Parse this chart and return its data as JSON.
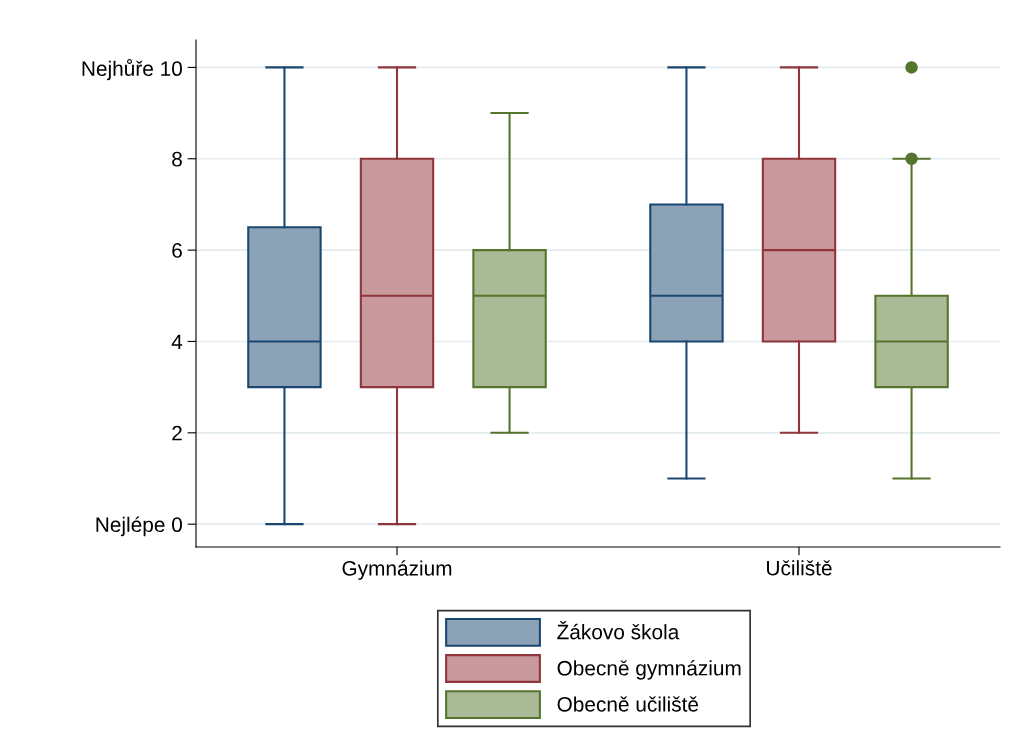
{
  "chart_data": {
    "type": "box",
    "categories": [
      "Gymnázium",
      "Učiliště"
    ],
    "series": [
      {
        "name": "Žákovo škola",
        "color": "#1a476f",
        "boxes": [
          {
            "low": 0,
            "q1": 3,
            "median": 4,
            "q3": 6.5,
            "high": 10
          },
          {
            "low": 1,
            "q1": 4,
            "median": 5,
            "q3": 7,
            "high": 10
          }
        ]
      },
      {
        "name": "Obecně gymnázium",
        "color": "#90353b",
        "boxes": [
          {
            "low": 0,
            "q1": 3,
            "median": 5,
            "q3": 8,
            "high": 10
          },
          {
            "low": 2,
            "q1": 4,
            "median": 6,
            "q3": 8,
            "high": 10
          }
        ]
      },
      {
        "name": "Obecně učiliště",
        "color": "#55752f",
        "boxes": [
          {
            "low": 2,
            "q1": 3,
            "median": 5,
            "q3": 6,
            "high": 9
          },
          {
            "low": 1,
            "q1": 3,
            "median": 4,
            "q3": 5,
            "high": 8,
            "outliers": [
              8,
              10
            ]
          }
        ]
      }
    ],
    "ylim": [
      -0.5,
      10.6
    ],
    "yticks": [
      {
        "value": 0,
        "label": "Nejlépe 0"
      },
      2,
      4,
      6,
      8,
      {
        "value": 10,
        "label": "Nejhůře 10"
      }
    ],
    "grid": "y",
    "legend": "bottom"
  }
}
